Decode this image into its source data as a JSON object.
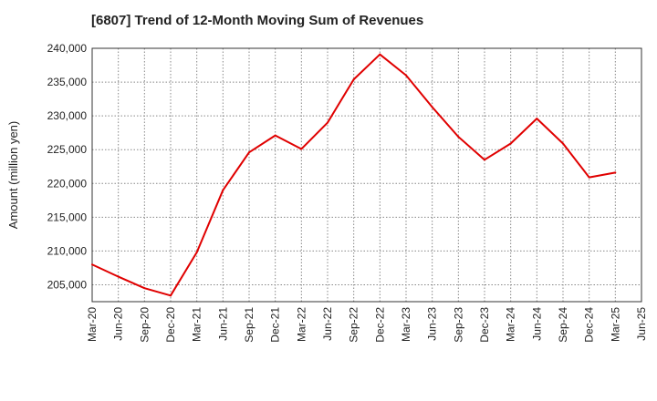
{
  "chart_data": {
    "type": "line",
    "title": "[6807]  Trend of 12-Month Moving Sum of Revenues",
    "xlabel": "",
    "ylabel": "Amount (million yen)",
    "ylim": [
      202500,
      240000
    ],
    "yticks": [
      205000,
      210000,
      215000,
      220000,
      225000,
      230000,
      235000,
      240000
    ],
    "ytick_labels": [
      "205,000",
      "210,000",
      "215,000",
      "220,000",
      "225,000",
      "230,000",
      "235,000",
      "240,000"
    ],
    "x_labels": [
      "Mar-20",
      "Jun-20",
      "Sep-20",
      "Dec-20",
      "Mar-21",
      "Jun-21",
      "Sep-21",
      "Dec-21",
      "Mar-22",
      "Jun-22",
      "Sep-22",
      "Dec-22",
      "Mar-23",
      "Jun-23",
      "Sep-23",
      "Dec-23",
      "Mar-24",
      "Jun-24",
      "Sep-24",
      "Dec-24",
      "Mar-25",
      "Jun-25"
    ],
    "grid": true,
    "series": [
      {
        "color": "#e00000",
        "x": [
          "Mar-20",
          "Jun-20",
          "Sep-20",
          "Dec-20",
          "Mar-21",
          "Jun-21",
          "Sep-21",
          "Dec-21",
          "Mar-22",
          "Jun-22",
          "Sep-22",
          "Dec-22",
          "Mar-23",
          "Jun-23",
          "Sep-23",
          "Dec-23",
          "Mar-24",
          "Jun-24",
          "Sep-24",
          "Dec-24",
          "Mar-25"
        ],
        "values": [
          208000,
          206200,
          204500,
          203400,
          209800,
          219000,
          224600,
          227100,
          225100,
          229000,
          235400,
          239100,
          236000,
          231300,
          226900,
          223500,
          225900,
          229600,
          225900,
          220900,
          221600
        ]
      }
    ]
  }
}
